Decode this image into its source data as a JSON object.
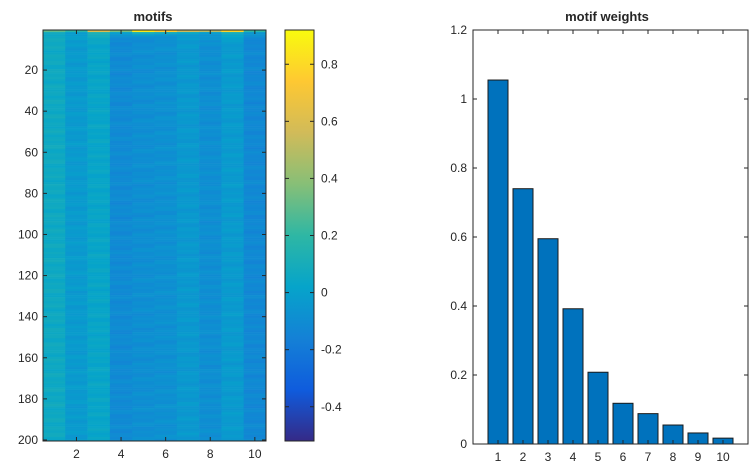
{
  "chart_data": [
    {
      "type": "heatmap",
      "title": "motifs",
      "xlabel": "",
      "ylabel": "",
      "x_range": [
        1,
        10
      ],
      "y_range": [
        1,
        200
      ],
      "x_ticks": [
        "2",
        "4",
        "6",
        "8",
        "10"
      ],
      "y_ticks": [
        "20",
        "40",
        "60",
        "80",
        "100",
        "120",
        "140",
        "160",
        "180",
        "200"
      ],
      "colorbar": {
        "range": [
          -0.52,
          0.92
        ],
        "ticks": [
          "-0.4",
          "-0.2",
          "0",
          "0.2",
          "0.4",
          "0.6",
          "0.8"
        ],
        "colormap": "parula"
      },
      "column_means": [
        0.06,
        -0.03,
        0.03,
        -0.11,
        -0.09,
        -0.08,
        -0.04,
        -0.09,
        -0.03,
        -0.12
      ],
      "top_row_values": [
        0.3,
        0.18,
        0.6,
        0.35,
        0.85,
        0.75,
        0.55,
        0.5,
        0.78,
        0.2
      ]
    },
    {
      "type": "bar",
      "title": "motif weights",
      "xlabel": "",
      "ylabel": "",
      "categories": [
        "1",
        "2",
        "3",
        "4",
        "5",
        "6",
        "7",
        "8",
        "9",
        "10"
      ],
      "values": [
        1.055,
        0.74,
        0.595,
        0.392,
        0.208,
        0.118,
        0.088,
        0.055,
        0.032,
        0.017
      ],
      "y_ticks": [
        "0",
        "0.2",
        "0.4",
        "0.6",
        "0.8",
        "1",
        "1.2"
      ],
      "ylim": [
        0,
        1.2
      ],
      "bar_color": "#0072BD"
    }
  ]
}
